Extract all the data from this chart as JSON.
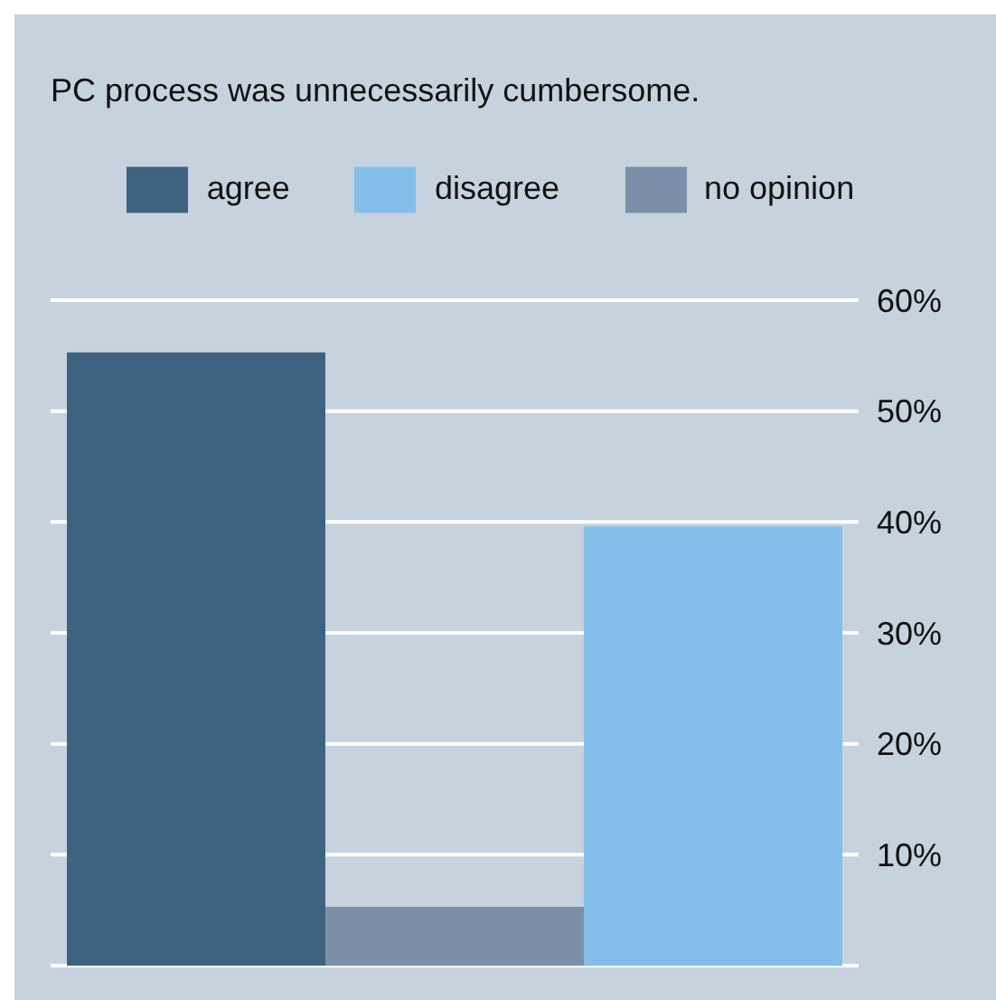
{
  "chart_data": {
    "type": "bar",
    "title": "PC process was unnecessarily cumbersome.",
    "categories": [
      null
    ],
    "series": [
      {
        "name": "agree",
        "color": "#3e6380",
        "values": [
          55.3
        ]
      },
      {
        "name": "no opinion",
        "color": "#7b90a8",
        "values": [
          5.3
        ]
      },
      {
        "name": "disagree",
        "color": "#83bfea",
        "values": [
          39.6
        ]
      }
    ],
    "ylim": [
      0,
      60
    ],
    "yticks": [
      {
        "value": 10,
        "label": "10%"
      },
      {
        "value": 20,
        "label": "20%"
      },
      {
        "value": 30,
        "label": "30%"
      },
      {
        "value": 40,
        "label": "40%"
      },
      {
        "value": 50,
        "label": "50%"
      },
      {
        "value": 60,
        "label": "60%"
      }
    ],
    "grid": "y",
    "legend": "top",
    "tick_labels": "y"
  }
}
